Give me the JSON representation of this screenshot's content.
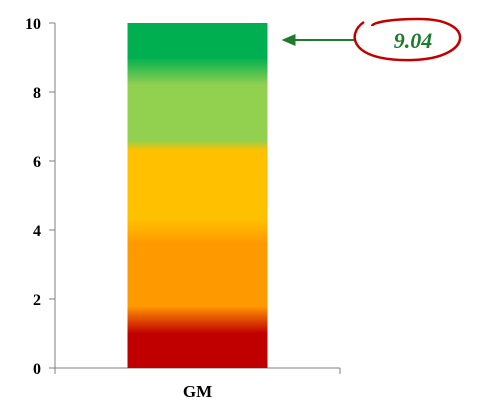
{
  "chart_data": {
    "type": "bar",
    "categories": [
      "GM"
    ],
    "values": [
      10
    ],
    "ylim": [
      0,
      10
    ],
    "yticks": [
      "0",
      "2",
      "4",
      "6",
      "8",
      "10"
    ],
    "gradient_bands": [
      {
        "from": 0,
        "to": 1.0,
        "color": "#c00000"
      },
      {
        "from": 1.8,
        "to": 3.6,
        "color": "#ff9900"
      },
      {
        "from": 4.3,
        "to": 6.3,
        "color": "#ffc000"
      },
      {
        "from": 6.6,
        "to": 8.2,
        "color": "#92d050"
      },
      {
        "from": 9.0,
        "to": 10,
        "color": "#00b050"
      }
    ],
    "annotation": {
      "value": 9.04,
      "label": "9.04",
      "text_color": "#1e7a2c",
      "ring_color": "#c00000"
    },
    "grid": false
  }
}
